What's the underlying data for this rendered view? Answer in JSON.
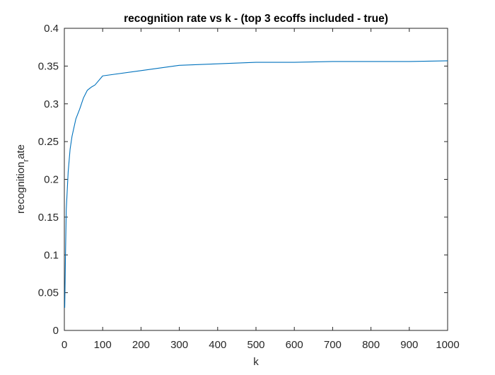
{
  "chart_data": {
    "type": "line",
    "title": "recognition rate vs k - (top 3 ecoffs included - true)",
    "xlabel": "k",
    "ylabel": {
      "main": "recognition",
      "subscript": "r",
      "rest": "ate"
    },
    "xlim": [
      0,
      1000
    ],
    "ylim": [
      0,
      0.4
    ],
    "xticks": [
      0,
      100,
      200,
      300,
      400,
      500,
      600,
      700,
      800,
      900,
      1000
    ],
    "xtick_labels": [
      "0",
      "100",
      "200",
      "300",
      "400",
      "500",
      "600",
      "700",
      "800",
      "900",
      "1000"
    ],
    "yticks": [
      0,
      0.05,
      0.1,
      0.15,
      0.2,
      0.25,
      0.3,
      0.35,
      0.4
    ],
    "ytick_labels": [
      "0",
      "0.05",
      "0.1",
      "0.15",
      "0.2",
      "0.25",
      "0.3",
      "0.35",
      "0.4"
    ],
    "grid": false,
    "line_color": "#0072bd",
    "series": [
      {
        "x": [
          1,
          3,
          5,
          10,
          15,
          20,
          30,
          40,
          50,
          60,
          70,
          80,
          100,
          200,
          300,
          400,
          500,
          600,
          700,
          800,
          900,
          1000
        ],
        "y": [
          0.03,
          0.1,
          0.16,
          0.21,
          0.24,
          0.257,
          0.28,
          0.293,
          0.308,
          0.318,
          0.322,
          0.325,
          0.337,
          0.344,
          0.351,
          0.353,
          0.355,
          0.355,
          0.356,
          0.356,
          0.356,
          0.357
        ]
      }
    ]
  }
}
